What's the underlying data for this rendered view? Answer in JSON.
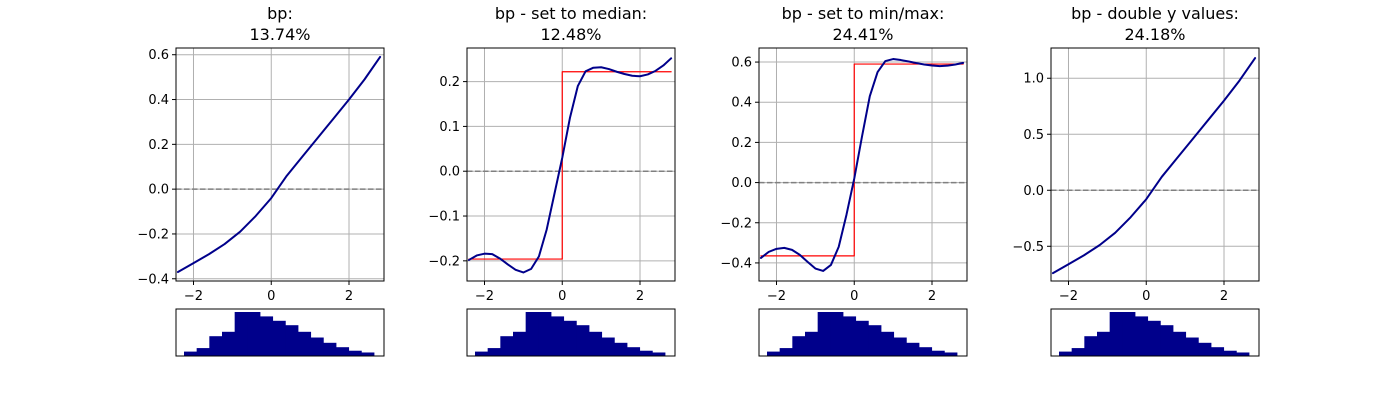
{
  "figure": {
    "background": "#ffffff",
    "curve_color": "#00008b",
    "step_color": "#ff0000",
    "hist_color": "#00008b",
    "zero_line_color": "#808080",
    "grid_color": "#b0b0b0"
  },
  "chart_data": [
    {
      "type": "line",
      "title": "bp:",
      "subtitle": "13.74%",
      "xlabel": "",
      "ylabel": "",
      "xlim": [
        -2.45,
        2.9
      ],
      "ylim": [
        -0.41,
        0.63
      ],
      "xticks": [
        -2,
        0,
        2
      ],
      "yticks": [
        -0.4,
        -0.2,
        0.0,
        0.2,
        0.4,
        0.6
      ],
      "ytick_labels": [
        "−0.4",
        "−0.2",
        "0.0",
        "0.2",
        "0.4",
        "0.6"
      ],
      "grid": true,
      "zero_line": true,
      "series": [
        {
          "role": "curve",
          "x": [
            -2.4,
            -2.0,
            -1.6,
            -1.2,
            -0.8,
            -0.4,
            0.0,
            0.4,
            0.8,
            1.2,
            1.6,
            2.0,
            2.4,
            2.8
          ],
          "y": [
            -0.37,
            -0.33,
            -0.29,
            -0.245,
            -0.19,
            -0.12,
            -0.04,
            0.06,
            0.145,
            0.23,
            0.315,
            0.4,
            0.49,
            0.59
          ]
        }
      ],
      "histogram": [
        0.1,
        0.18,
        0.45,
        0.55,
        1.0,
        1.0,
        0.9,
        0.8,
        0.7,
        0.55,
        0.42,
        0.3,
        0.2,
        0.12,
        0.08
      ]
    },
    {
      "type": "line",
      "title": "bp - set to median:",
      "subtitle": "12.48%",
      "xlabel": "",
      "ylabel": "",
      "xlim": [
        -2.45,
        2.9
      ],
      "ylim": [
        -0.245,
        0.275
      ],
      "xticks": [
        -2,
        0,
        2
      ],
      "yticks": [
        -0.2,
        -0.1,
        0.0,
        0.1,
        0.2
      ],
      "ytick_labels": [
        "−0.2",
        "−0.1",
        "0.0",
        "0.1",
        "0.2"
      ],
      "grid": true,
      "zero_line": true,
      "series": [
        {
          "role": "curve",
          "x": [
            -2.4,
            -2.2,
            -2.0,
            -1.8,
            -1.6,
            -1.4,
            -1.2,
            -1.0,
            -0.8,
            -0.6,
            -0.4,
            -0.2,
            0.0,
            0.2,
            0.4,
            0.6,
            0.8,
            1.0,
            1.2,
            1.4,
            1.6,
            1.8,
            2.0,
            2.2,
            2.4,
            2.6,
            2.8
          ],
          "y": [
            -0.198,
            -0.188,
            -0.184,
            -0.185,
            -0.195,
            -0.208,
            -0.22,
            -0.226,
            -0.218,
            -0.19,
            -0.13,
            -0.05,
            0.03,
            0.12,
            0.19,
            0.223,
            0.231,
            0.232,
            0.228,
            0.222,
            0.217,
            0.213,
            0.212,
            0.216,
            0.224,
            0.236,
            0.252
          ]
        },
        {
          "role": "step",
          "x": [
            -2.4,
            0.0,
            0.0,
            2.8
          ],
          "y": [
            -0.196,
            -0.196,
            0.222,
            0.222
          ]
        }
      ],
      "histogram": [
        0.1,
        0.18,
        0.45,
        0.55,
        1.0,
        1.0,
        0.9,
        0.8,
        0.7,
        0.55,
        0.42,
        0.3,
        0.2,
        0.12,
        0.08
      ]
    },
    {
      "type": "line",
      "title": "bp - set to min/max:",
      "subtitle": "24.41%",
      "xlabel": "",
      "ylabel": "",
      "xlim": [
        -2.45,
        2.9
      ],
      "ylim": [
        -0.49,
        0.67
      ],
      "xticks": [
        -2,
        0,
        2
      ],
      "yticks": [
        -0.4,
        -0.2,
        0.0,
        0.2,
        0.4,
        0.6
      ],
      "ytick_labels": [
        "−0.4",
        "−0.2",
        "0.0",
        "0.2",
        "0.4",
        "0.6"
      ],
      "grid": true,
      "zero_line": true,
      "series": [
        {
          "role": "curve",
          "x": [
            -2.4,
            -2.2,
            -2.0,
            -1.8,
            -1.6,
            -1.4,
            -1.2,
            -1.0,
            -0.8,
            -0.6,
            -0.4,
            -0.2,
            0.0,
            0.2,
            0.4,
            0.6,
            0.8,
            1.0,
            1.2,
            1.4,
            1.6,
            1.8,
            2.0,
            2.2,
            2.4,
            2.6,
            2.8
          ],
          "y": [
            -0.375,
            -0.345,
            -0.33,
            -0.325,
            -0.335,
            -0.36,
            -0.395,
            -0.428,
            -0.44,
            -0.41,
            -0.32,
            -0.16,
            0.02,
            0.23,
            0.43,
            0.55,
            0.605,
            0.615,
            0.61,
            0.603,
            0.595,
            0.588,
            0.583,
            0.58,
            0.582,
            0.588,
            0.596
          ]
        },
        {
          "role": "step",
          "x": [
            -2.4,
            0.0,
            0.0,
            2.8
          ],
          "y": [
            -0.365,
            -0.365,
            0.59,
            0.59
          ]
        }
      ],
      "histogram": [
        0.1,
        0.18,
        0.45,
        0.55,
        1.0,
        1.0,
        0.9,
        0.8,
        0.7,
        0.55,
        0.42,
        0.3,
        0.2,
        0.12,
        0.08
      ]
    },
    {
      "type": "line",
      "title": "bp - double y values:",
      "subtitle": "24.18%",
      "xlabel": "",
      "ylabel": "",
      "xlim": [
        -2.45,
        2.9
      ],
      "ylim": [
        -0.81,
        1.27
      ],
      "xticks": [
        -2,
        0,
        2
      ],
      "yticks": [
        -0.5,
        0.0,
        0.5,
        1.0
      ],
      "ytick_labels": [
        "−0.5",
        "0.0",
        "0.5",
        "1.0"
      ],
      "grid": true,
      "zero_line": true,
      "series": [
        {
          "role": "step",
          "x": [
            -2.4,
            -2.0,
            -1.6,
            -1.2,
            -0.8,
            -0.4,
            0.0,
            0.4,
            0.8,
            1.2,
            1.6,
            2.0,
            2.4,
            2.8
          ],
          "y": [
            -0.74,
            -0.66,
            -0.58,
            -0.49,
            -0.38,
            -0.24,
            -0.08,
            0.12,
            0.29,
            0.46,
            0.63,
            0.8,
            0.98,
            1.18
          ]
        },
        {
          "role": "curve",
          "x": [
            -2.4,
            -2.0,
            -1.6,
            -1.2,
            -0.8,
            -0.4,
            0.0,
            0.4,
            0.8,
            1.2,
            1.6,
            2.0,
            2.4,
            2.8
          ],
          "y": [
            -0.74,
            -0.66,
            -0.58,
            -0.49,
            -0.38,
            -0.24,
            -0.08,
            0.12,
            0.29,
            0.46,
            0.63,
            0.8,
            0.98,
            1.18
          ]
        }
      ],
      "histogram": [
        0.1,
        0.18,
        0.45,
        0.55,
        1.0,
        1.0,
        0.9,
        0.8,
        0.7,
        0.55,
        0.42,
        0.3,
        0.2,
        0.12,
        0.08
      ]
    }
  ]
}
